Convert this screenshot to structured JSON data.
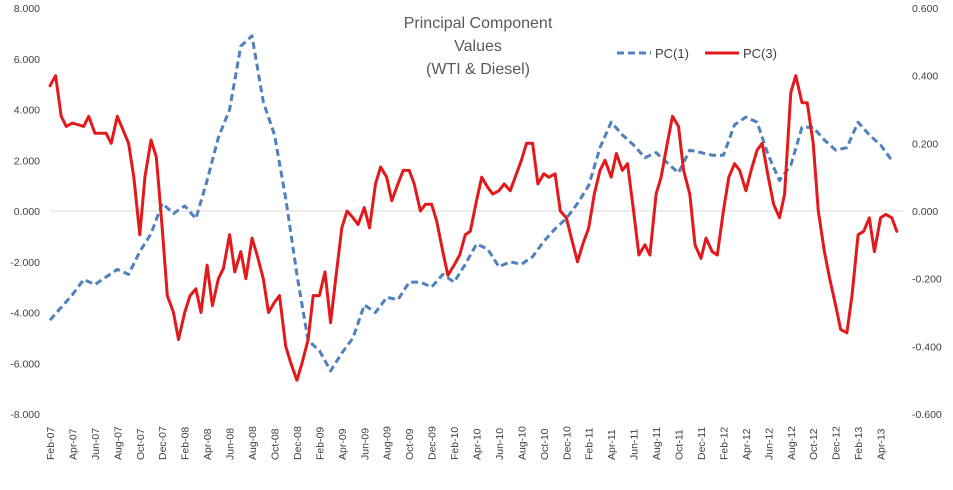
{
  "chart_data": {
    "type": "line",
    "title": [
      "Principal Component",
      "Values",
      "(WTI & Diesel)"
    ],
    "legend": {
      "placement": "top-right"
    },
    "grid": false,
    "left_axis": {
      "ylim": [
        -8,
        8
      ],
      "ticks": [
        8,
        6,
        4,
        2,
        0,
        -2,
        -4,
        -6,
        -8
      ],
      "tick_labels": [
        "8.000",
        "6.000",
        "4.000",
        "2.000",
        "0.000",
        "-2.000",
        "-4.000",
        "-6.000",
        "-8.000"
      ]
    },
    "right_axis": {
      "ylim": [
        -0.6,
        0.6
      ],
      "ticks": [
        0.6,
        0.4,
        0.2,
        0,
        -0.2,
        -0.4,
        -0.6
      ],
      "tick_labels": [
        "0.600",
        "0.400",
        "0.200",
        "0.000",
        "-0.200",
        "-0.400",
        "-0.600"
      ]
    },
    "x_axis": {
      "start": "2007-02",
      "end": "2013-06",
      "tick_labels": [
        "Feb-07",
        "Apr-07",
        "Jun-07",
        "Aug-07",
        "Oct-07",
        "Dec-07",
        "Feb-08",
        "Apr-08",
        "Jun-08",
        "Aug-08",
        "Oct-08",
        "Dec-08",
        "Feb-09",
        "Apr-09",
        "Jun-09",
        "Aug-09",
        "Oct-09",
        "Dec-09",
        "Feb-10",
        "Apr-10",
        "Jun-10",
        "Aug-10",
        "Oct-10",
        "Dec-10",
        "Feb-11",
        "Apr-11",
        "Jun-11",
        "Aug-11",
        "Oct-11",
        "Dec-11",
        "Feb-12",
        "Apr-12",
        "Jun-12",
        "Aug-12",
        "Oct-12",
        "Dec-12",
        "Feb-13",
        "Apr-13"
      ]
    },
    "series": [
      {
        "name": "PC(1)",
        "axis": "left",
        "color": "#4F81BD",
        "style": "dashed",
        "points": [
          [
            "2007-02-01",
            -4.3
          ],
          [
            "2007-03-01",
            -3.8
          ],
          [
            "2007-04-01",
            -3.3
          ],
          [
            "2007-05-01",
            -2.7
          ],
          [
            "2007-06-01",
            -2.9
          ],
          [
            "2007-07-01",
            -2.6
          ],
          [
            "2007-08-01",
            -2.3
          ],
          [
            "2007-09-01",
            -2.5
          ],
          [
            "2007-10-01",
            -1.6
          ],
          [
            "2007-11-01",
            -0.9
          ],
          [
            "2007-12-01",
            0.3
          ],
          [
            "2008-01-01",
            -0.1
          ],
          [
            "2008-02-01",
            0.2
          ],
          [
            "2008-03-01",
            -0.3
          ],
          [
            "2008-04-01",
            1.2
          ],
          [
            "2008-05-01",
            2.9
          ],
          [
            "2008-06-01",
            4.0
          ],
          [
            "2008-07-01",
            6.5
          ],
          [
            "2008-08-01",
            6.9
          ],
          [
            "2008-09-01",
            4.3
          ],
          [
            "2008-10-01",
            3.0
          ],
          [
            "2008-11-01",
            0.5
          ],
          [
            "2008-12-01",
            -2.5
          ],
          [
            "2009-01-01",
            -5.1
          ],
          [
            "2009-02-01",
            -5.5
          ],
          [
            "2009-03-01",
            -6.3
          ],
          [
            "2009-04-01",
            -5.6
          ],
          [
            "2009-05-01",
            -5.0
          ],
          [
            "2009-06-01",
            -3.7
          ],
          [
            "2009-07-01",
            -4.0
          ],
          [
            "2009-08-01",
            -3.4
          ],
          [
            "2009-09-01",
            -3.5
          ],
          [
            "2009-10-01",
            -2.8
          ],
          [
            "2009-11-01",
            -2.8
          ],
          [
            "2009-12-01",
            -3.0
          ],
          [
            "2010-01-01",
            -2.5
          ],
          [
            "2010-02-01",
            -2.8
          ],
          [
            "2010-03-01",
            -2.1
          ],
          [
            "2010-04-01",
            -1.3
          ],
          [
            "2010-05-01",
            -1.5
          ],
          [
            "2010-06-01",
            -2.2
          ],
          [
            "2010-07-01",
            -2.0
          ],
          [
            "2010-08-01",
            -2.1
          ],
          [
            "2010-09-01",
            -1.8
          ],
          [
            "2010-10-01",
            -1.2
          ],
          [
            "2010-11-01",
            -0.7
          ],
          [
            "2010-12-01",
            -0.3
          ],
          [
            "2011-01-01",
            0.3
          ],
          [
            "2011-02-01",
            1.0
          ],
          [
            "2011-03-01",
            2.5
          ],
          [
            "2011-04-01",
            3.5
          ],
          [
            "2011-05-01",
            3.0
          ],
          [
            "2011-06-01",
            2.6
          ],
          [
            "2011-07-01",
            2.1
          ],
          [
            "2011-08-01",
            2.3
          ],
          [
            "2011-09-01",
            1.9
          ],
          [
            "2011-10-01",
            1.5
          ],
          [
            "2011-11-01",
            2.4
          ],
          [
            "2011-12-01",
            2.3
          ],
          [
            "2012-01-01",
            2.2
          ],
          [
            "2012-02-01",
            2.2
          ],
          [
            "2012-03-01",
            3.4
          ],
          [
            "2012-04-01",
            3.7
          ],
          [
            "2012-05-01",
            3.5
          ],
          [
            "2012-06-01",
            2.2
          ],
          [
            "2012-07-01",
            1.2
          ],
          [
            "2012-08-01",
            1.8
          ],
          [
            "2012-09-01",
            3.3
          ],
          [
            "2012-10-01",
            3.3
          ],
          [
            "2012-11-01",
            2.8
          ],
          [
            "2012-12-01",
            2.4
          ],
          [
            "2013-01-01",
            2.5
          ],
          [
            "2013-02-01",
            3.5
          ],
          [
            "2013-03-01",
            3.0
          ],
          [
            "2013-04-01",
            2.6
          ],
          [
            "2013-05-01",
            2.0
          ]
        ]
      },
      {
        "name": "PC(3)",
        "axis": "right",
        "color": "#E31A1C",
        "style": "solid",
        "points": [
          [
            "2007-02-01",
            0.37
          ],
          [
            "2007-02-15",
            0.4
          ],
          [
            "2007-03-01",
            0.28
          ],
          [
            "2007-03-15",
            0.25
          ],
          [
            "2007-04-01",
            0.26
          ],
          [
            "2007-05-01",
            0.25
          ],
          [
            "2007-05-15",
            0.28
          ],
          [
            "2007-06-01",
            0.23
          ],
          [
            "2007-07-01",
            0.23
          ],
          [
            "2007-07-15",
            0.2
          ],
          [
            "2007-08-01",
            0.28
          ],
          [
            "2007-09-01",
            0.2
          ],
          [
            "2007-09-15",
            0.1
          ],
          [
            "2007-10-01",
            -0.07
          ],
          [
            "2007-10-15",
            0.1
          ],
          [
            "2007-11-01",
            0.21
          ],
          [
            "2007-11-15",
            0.16
          ],
          [
            "2007-12-01",
            -0.05
          ],
          [
            "2007-12-15",
            -0.25
          ],
          [
            "2008-01-01",
            -0.3
          ],
          [
            "2008-01-15",
            -0.38
          ],
          [
            "2008-02-01",
            -0.3
          ],
          [
            "2008-02-15",
            -0.25
          ],
          [
            "2008-03-01",
            -0.23
          ],
          [
            "2008-03-15",
            -0.3
          ],
          [
            "2008-04-01",
            -0.16
          ],
          [
            "2008-04-15",
            -0.28
          ],
          [
            "2008-05-01",
            -0.2
          ],
          [
            "2008-05-15",
            -0.17
          ],
          [
            "2008-06-01",
            -0.07
          ],
          [
            "2008-06-15",
            -0.18
          ],
          [
            "2008-07-01",
            -0.12
          ],
          [
            "2008-07-15",
            -0.2
          ],
          [
            "2008-08-01",
            -0.08
          ],
          [
            "2008-08-15",
            -0.13
          ],
          [
            "2008-09-01",
            -0.2
          ],
          [
            "2008-09-15",
            -0.3
          ],
          [
            "2008-10-01",
            -0.27
          ],
          [
            "2008-10-15",
            -0.25
          ],
          [
            "2008-11-01",
            -0.4
          ],
          [
            "2008-11-15",
            -0.45
          ],
          [
            "2008-12-01",
            -0.5
          ],
          [
            "2008-12-15",
            -0.45
          ],
          [
            "2009-01-01",
            -0.38
          ],
          [
            "2009-01-15",
            -0.25
          ],
          [
            "2009-02-01",
            -0.25
          ],
          [
            "2009-02-15",
            -0.18
          ],
          [
            "2009-03-01",
            -0.33
          ],
          [
            "2009-03-15",
            -0.2
          ],
          [
            "2009-04-01",
            -0.05
          ],
          [
            "2009-04-15",
            0.0
          ],
          [
            "2009-05-01",
            -0.02
          ],
          [
            "2009-05-15",
            -0.04
          ],
          [
            "2009-06-01",
            0.01
          ],
          [
            "2009-06-15",
            -0.05
          ],
          [
            "2009-07-01",
            0.08
          ],
          [
            "2009-07-15",
            0.13
          ],
          [
            "2009-08-01",
            0.1
          ],
          [
            "2009-08-15",
            0.03
          ],
          [
            "2009-09-01",
            0.08
          ],
          [
            "2009-09-15",
            0.12
          ],
          [
            "2009-10-01",
            0.12
          ],
          [
            "2009-10-15",
            0.08
          ],
          [
            "2009-11-01",
            0.0
          ],
          [
            "2009-11-15",
            0.02
          ],
          [
            "2009-12-01",
            0.02
          ],
          [
            "2009-12-15",
            -0.03
          ],
          [
            "2010-01-01",
            -0.12
          ],
          [
            "2010-01-15",
            -0.19
          ],
          [
            "2010-02-01",
            -0.16
          ],
          [
            "2010-02-15",
            -0.13
          ],
          [
            "2010-03-01",
            -0.07
          ],
          [
            "2010-03-15",
            -0.06
          ],
          [
            "2010-04-01",
            0.03
          ],
          [
            "2010-04-15",
            0.1
          ],
          [
            "2010-05-01",
            0.07
          ],
          [
            "2010-05-15",
            0.05
          ],
          [
            "2010-06-01",
            0.06
          ],
          [
            "2010-06-15",
            0.08
          ],
          [
            "2010-07-01",
            0.06
          ],
          [
            "2010-07-15",
            0.1
          ],
          [
            "2010-08-01",
            0.15
          ],
          [
            "2010-08-15",
            0.2
          ],
          [
            "2010-09-01",
            0.2
          ],
          [
            "2010-09-15",
            0.08
          ],
          [
            "2010-10-01",
            0.11
          ],
          [
            "2010-10-15",
            0.1
          ],
          [
            "2010-11-01",
            0.11
          ],
          [
            "2010-11-15",
            0.0
          ],
          [
            "2010-12-01",
            -0.02
          ],
          [
            "2010-12-15",
            -0.08
          ],
          [
            "2011-01-01",
            -0.15
          ],
          [
            "2011-01-15",
            -0.1
          ],
          [
            "2011-02-01",
            -0.05
          ],
          [
            "2011-02-15",
            0.05
          ],
          [
            "2011-03-01",
            0.12
          ],
          [
            "2011-03-15",
            0.15
          ],
          [
            "2011-04-01",
            0.1
          ],
          [
            "2011-04-15",
            0.17
          ],
          [
            "2011-05-01",
            0.12
          ],
          [
            "2011-05-15",
            0.14
          ],
          [
            "2011-06-01",
            0.0
          ],
          [
            "2011-06-15",
            -0.13
          ],
          [
            "2011-07-01",
            -0.1
          ],
          [
            "2011-07-15",
            -0.13
          ],
          [
            "2011-08-01",
            0.05
          ],
          [
            "2011-08-15",
            0.1
          ],
          [
            "2011-09-01",
            0.2
          ],
          [
            "2011-09-15",
            0.28
          ],
          [
            "2011-10-01",
            0.25
          ],
          [
            "2011-10-15",
            0.12
          ],
          [
            "2011-11-01",
            0.05
          ],
          [
            "2011-11-15",
            -0.1
          ],
          [
            "2011-12-01",
            -0.14
          ],
          [
            "2011-12-15",
            -0.08
          ],
          [
            "2012-01-01",
            -0.12
          ],
          [
            "2012-01-15",
            -0.13
          ],
          [
            "2012-02-01",
            0.0
          ],
          [
            "2012-02-15",
            0.1
          ],
          [
            "2012-03-01",
            0.14
          ],
          [
            "2012-03-15",
            0.12
          ],
          [
            "2012-04-01",
            0.06
          ],
          [
            "2012-04-15",
            0.12
          ],
          [
            "2012-05-01",
            0.18
          ],
          [
            "2012-05-15",
            0.2
          ],
          [
            "2012-06-01",
            0.1
          ],
          [
            "2012-06-15",
            0.02
          ],
          [
            "2012-07-01",
            -0.02
          ],
          [
            "2012-07-15",
            0.05
          ],
          [
            "2012-08-01",
            0.35
          ],
          [
            "2012-08-15",
            0.4
          ],
          [
            "2012-09-01",
            0.32
          ],
          [
            "2012-09-15",
            0.32
          ],
          [
            "2012-10-01",
            0.2
          ],
          [
            "2012-10-15",
            0.0
          ],
          [
            "2012-11-01",
            -0.12
          ],
          [
            "2012-11-15",
            -0.2
          ],
          [
            "2012-12-01",
            -0.28
          ],
          [
            "2012-12-15",
            -0.35
          ],
          [
            "2013-01-01",
            -0.36
          ],
          [
            "2013-01-15",
            -0.25
          ],
          [
            "2013-02-01",
            -0.07
          ],
          [
            "2013-02-15",
            -0.06
          ],
          [
            "2013-03-01",
            -0.02
          ],
          [
            "2013-03-15",
            -0.12
          ],
          [
            "2013-04-01",
            -0.02
          ],
          [
            "2013-04-15",
            -0.01
          ],
          [
            "2013-05-01",
            -0.02
          ],
          [
            "2013-05-15",
            -0.06
          ]
        ]
      }
    ]
  }
}
